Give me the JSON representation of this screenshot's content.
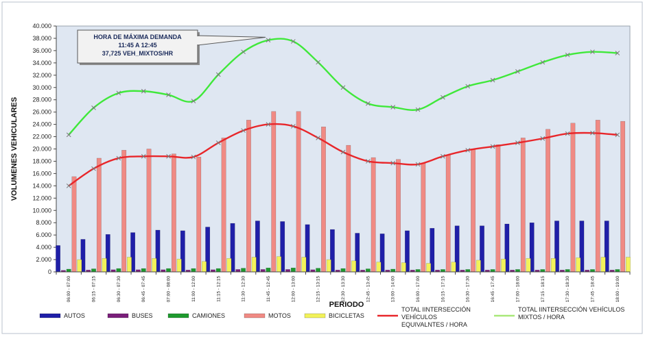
{
  "chart_data": {
    "type": "bar",
    "title": "",
    "xlabel": "PERIODO",
    "ylabel": "VOLUMENES VEHICULARES",
    "ylim": [
      0,
      40000
    ],
    "yticks": [
      "0",
      "2.000",
      "4.000",
      "6.000",
      "8.000",
      "10.000",
      "12.000",
      "14.000",
      "16.000",
      "18.000",
      "20.000",
      "22.000",
      "24.000",
      "26.000",
      "28.000",
      "30.000",
      "32.000",
      "34.000",
      "36.000",
      "38.000",
      "40.000"
    ],
    "grid": false,
    "legend_position": "bottom",
    "categories": [
      "06:00 - 07:00",
      "06:15 - 07:15",
      "06:30 - 07:30",
      "06:45 - 07:45",
      "07:00 - 08:00",
      "11:00 - 12:00",
      "11:15 - 12:15",
      "11:30 - 12:30",
      "11:45 - 12:45",
      "12:00 - 13:00",
      "12:15 - 13:15",
      "12:30 - 13:30",
      "12:45 - 13:45",
      "13:00 - 14:00",
      "16:00 - 17:00",
      "16:15 - 17:15",
      "16:30 - 17:30",
      "16:45 - 17:45",
      "17:00 - 18:00",
      "17:15 - 18:15",
      "17:30 - 18:30",
      "17:45 - 18:45",
      "18:00 - 19:00"
    ],
    "series": [
      {
        "name": "AUTOS",
        "kind": "bar",
        "color": "#1f1fa8",
        "values": [
          4300,
          5300,
          6100,
          6400,
          6800,
          6700,
          7300,
          7900,
          8300,
          8200,
          7700,
          6900,
          6300,
          6200,
          6700,
          7100,
          7500,
          7500,
          7800,
          8000,
          8300,
          8300,
          8300
        ]
      },
      {
        "name": "BUSES",
        "kind": "bar",
        "color": "#7a1f7a",
        "values": [
          250,
          300,
          350,
          350,
          350,
          300,
          350,
          400,
          400,
          400,
          350,
          300,
          300,
          300,
          300,
          300,
          300,
          300,
          300,
          300,
          300,
          300,
          300
        ]
      },
      {
        "name": "CAMIONES",
        "kind": "bar",
        "color": "#1f9a2f",
        "values": [
          450,
          500,
          550,
          550,
          550,
          550,
          550,
          600,
          650,
          650,
          600,
          550,
          500,
          450,
          400,
          400,
          400,
          400,
          400,
          400,
          400,
          400,
          400
        ]
      },
      {
        "name": "MOTOS",
        "kind": "bar",
        "color": "#f08a84",
        "values": [
          15500,
          18500,
          19800,
          20000,
          19200,
          18700,
          21800,
          24700,
          26100,
          26100,
          23600,
          20600,
          18600,
          18300,
          17700,
          19000,
          20000,
          20700,
          21800,
          23200,
          24200,
          24700,
          24500
        ]
      },
      {
        "name": "BICICLETAS",
        "kind": "bar",
        "color": "#f2f25a",
        "values": [
          2000,
          2200,
          2400,
          2200,
          2100,
          1700,
          2200,
          2400,
          2500,
          2400,
          2000,
          1800,
          1600,
          1500,
          1400,
          1600,
          1900,
          2100,
          2200,
          2200,
          2300,
          2400,
          2400
        ]
      },
      {
        "name": "TOTAL IINTERSECCIÓN VEHÍCULOS EQUIVALENTES / HORA",
        "kind": "line",
        "color": "#e8262a",
        "values": [
          14000,
          16800,
          18500,
          18800,
          18800,
          18700,
          21000,
          23000,
          24000,
          23700,
          21800,
          19500,
          18000,
          17700,
          17500,
          18800,
          19800,
          20400,
          21000,
          21700,
          22500,
          22600,
          22300
        ]
      },
      {
        "name": "TOTAL IINTERSECCIÓN VEHÍCULOS MIXTOS / HORA",
        "kind": "line",
        "color": "#3fe83a",
        "values": [
          22300,
          26700,
          29100,
          29400,
          28800,
          27800,
          32100,
          35800,
          37700,
          37500,
          34100,
          30000,
          27400,
          26800,
          26400,
          28400,
          30200,
          31200,
          32600,
          34100,
          35300,
          35800,
          35600
        ]
      }
    ],
    "legend": [
      {
        "lines": [
          "AUTOS"
        ],
        "color": "#1f1fa8"
      },
      {
        "lines": [
          "BUSES"
        ],
        "color": "#7a1f7a"
      },
      {
        "lines": [
          "CAMIONES"
        ],
        "color": "#1f9a2f"
      },
      {
        "lines": [
          "MOTOS"
        ],
        "color": "#f08a84"
      },
      {
        "lines": [
          "BICICLETAS"
        ],
        "color": "#f2f25a"
      },
      {
        "lines": [
          "TOTAL IINTERSECCIÓN",
          "VEHÍCULOS",
          "EQUIVALNTES / HORA"
        ],
        "color": "#e8262a"
      },
      {
        "lines": [
          "TOTAL IINTERSECCIÓN VEHÍCULOS",
          "MIXTOS / HORA"
        ],
        "color": "#a8e878"
      }
    ],
    "annotations": [
      {
        "lines": [
          "HORA DE MÁXIMA DEMANDA",
          "11:45  A 12:45",
          "37,725  VEH_MIXTOS/HR"
        ],
        "points_to_category": "11:45 - 12:45",
        "points_to_value": 37725
      }
    ]
  }
}
